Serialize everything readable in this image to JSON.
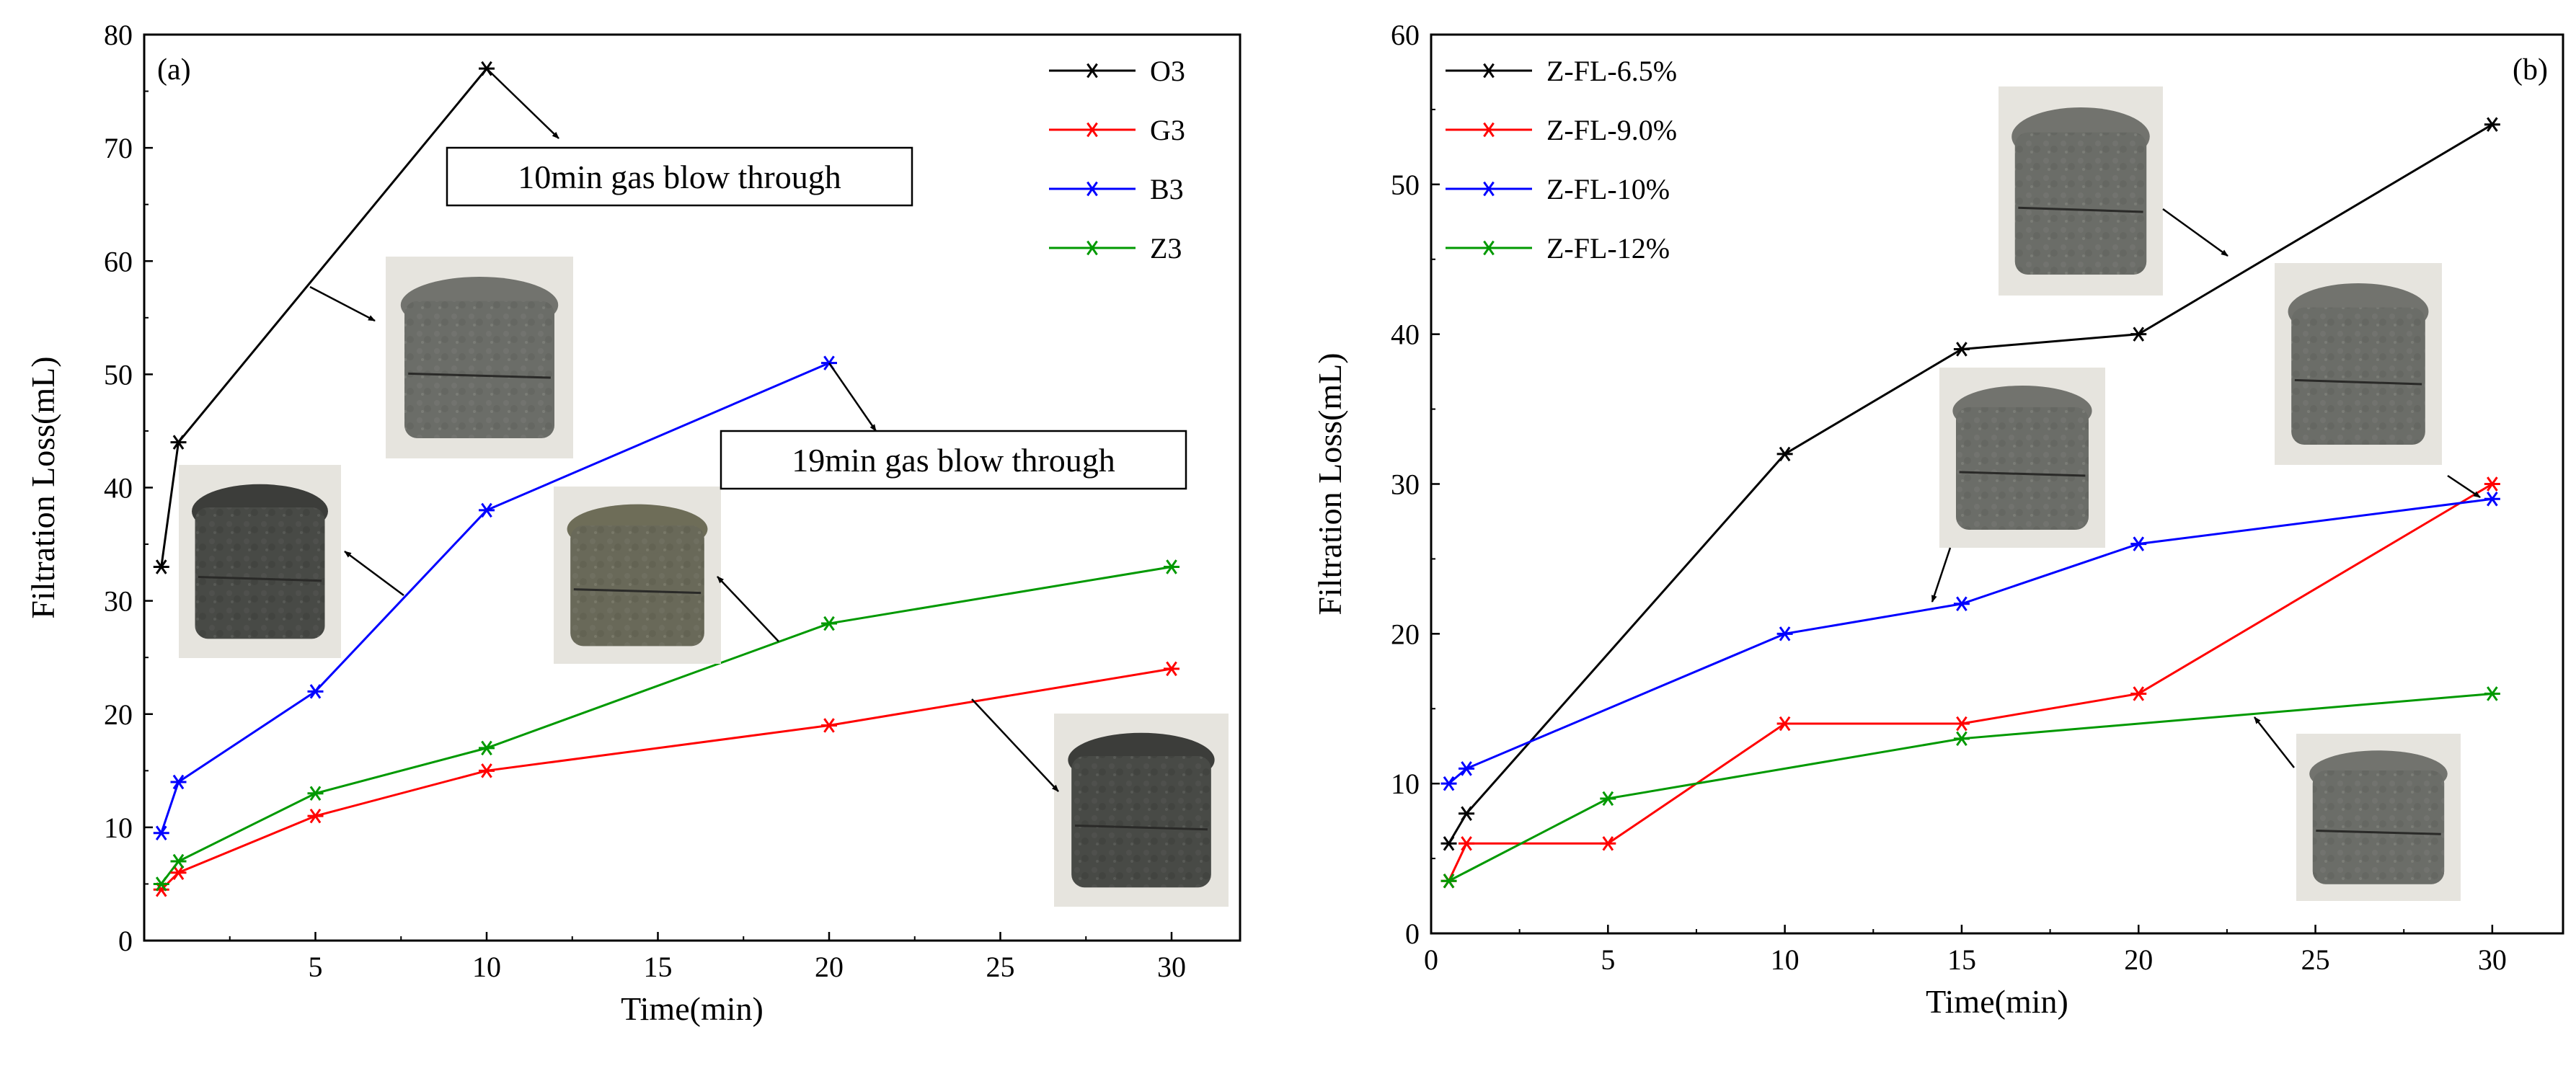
{
  "chart_data": [
    {
      "type": "line",
      "panel_label": "(a)",
      "xlabel": "Time(min)",
      "ylabel": "Filtration Loss(mL)",
      "xlim": [
        0,
        32
      ],
      "ylim": [
        0,
        80
      ],
      "xticks": [
        5,
        10,
        15,
        20,
        25,
        30
      ],
      "yticks": [
        0,
        10,
        20,
        30,
        40,
        50,
        60,
        70,
        80
      ],
      "legend_position": "top-right",
      "series": [
        {
          "name": "O3",
          "color": "#000000",
          "x": [
            0.5,
            1,
            10
          ],
          "y": [
            33,
            44,
            77
          ]
        },
        {
          "name": "G3",
          "color": "#ff0000",
          "x": [
            0.5,
            1,
            5,
            10,
            20,
            30
          ],
          "y": [
            4.5,
            6,
            11,
            15,
            19,
            24
          ]
        },
        {
          "name": "B3",
          "color": "#0000ff",
          "x": [
            0.5,
            1,
            5,
            10,
            20
          ],
          "y": [
            9.5,
            14,
            22,
            38,
            51
          ]
        },
        {
          "name": "Z3",
          "color": "#009900",
          "x": [
            0.5,
            1,
            5,
            10,
            20,
            30
          ],
          "y": [
            5,
            7,
            13,
            17,
            28,
            33
          ]
        }
      ],
      "annotations": [
        {
          "text": "10min gas blow through",
          "boxed": true
        },
        {
          "text": "19min gas blow through",
          "boxed": true
        }
      ],
      "photos": [
        "O3 cake",
        "B3 cake",
        "Z3 cake",
        "G3 cake"
      ]
    },
    {
      "type": "line",
      "panel_label": "(b)",
      "xlabel": "Time(min)",
      "ylabel": "Filtration Loss(mL)",
      "xlim": [
        0,
        32
      ],
      "ylim": [
        0,
        60
      ],
      "xticks": [
        0,
        5,
        10,
        15,
        20,
        25,
        30
      ],
      "yticks": [
        0,
        10,
        20,
        30,
        40,
        50,
        60
      ],
      "legend_position": "top-left",
      "series": [
        {
          "name": "Z-FL-6.5%",
          "color": "#000000",
          "x": [
            0.5,
            1,
            10,
            15,
            20,
            30
          ],
          "y": [
            6,
            8,
            32,
            39,
            40,
            54
          ]
        },
        {
          "name": "Z-FL-9.0%",
          "color": "#ff0000",
          "x": [
            0.5,
            1,
            5,
            10,
            15,
            20,
            30
          ],
          "y": [
            3.5,
            6,
            6,
            14,
            14,
            16,
            30
          ]
        },
        {
          "name": "Z-FL-10%",
          "color": "#0000ff",
          "x": [
            0.5,
            1,
            10,
            15,
            20,
            30
          ],
          "y": [
            10,
            11,
            20,
            22,
            26,
            29
          ]
        },
        {
          "name": "Z-FL-12%",
          "color": "#009900",
          "x": [
            0.5,
            5,
            15,
            30
          ],
          "y": [
            3.5,
            9,
            13,
            16
          ]
        }
      ],
      "photos": [
        "Z-FL-6.5% cake",
        "Z-FL-9.0% cake",
        "Z-FL-10% cake",
        "Z-FL-12% cake"
      ]
    }
  ]
}
